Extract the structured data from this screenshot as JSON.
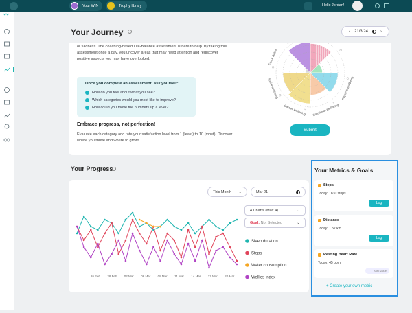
{
  "top_bar": {
    "tabs": [
      "Your WIN",
      "Trophy library"
    ],
    "greeting": "Hello Jordan!"
  },
  "journey": {
    "title": "Your Journey",
    "date": "21/3/24",
    "intro": "the factors shaping your well-being. When we get busy, we overlook the moments of joy or sadness. The coaching-based Life-Balance assessment is here to help. By taking this assessment once a day, you uncover areas that may need attention and rediscover positive aspects you may have overlooked.",
    "box_title": "Once you complete an assessment, ask yourself:",
    "questions": [
      "How do you feel about what you see?",
      "Which categories would you most like to improve?",
      "How could you move the numbers up a level?"
    ],
    "motto": "Embrace progress, not perfection!",
    "instructions": "Evaluate each category and rate your satisfaction level from 1 (least) to 10 (most). Discover where you thrive and where to grow!",
    "submit": "Submit"
  },
  "progress": {
    "title": "Your Progress",
    "period": "This Month",
    "date": "Mar 21",
    "charts": "4 Charts (Max 4)",
    "goal_label": "Goal:",
    "goal_value": "Not Selected"
  },
  "metrics": {
    "title": "Your Metrics & Goals",
    "items": [
      {
        "name": "Steps",
        "today": "Today: 1830 steps",
        "action": "Log"
      },
      {
        "name": "Distance",
        "today": "Today: 1.57 km",
        "action": "Log"
      },
      {
        "name": "Resting Heart Rate",
        "today": "Today: 45 bpm",
        "action": "Auto value"
      }
    ],
    "create": "+ Create your own metric"
  },
  "chart_data": [
    {
      "type": "polar",
      "categories": [
        null,
        null,
        "Physical wellbeing",
        "Emotional wellbeing",
        "Career wellbeing",
        "Social wellbeing",
        "Fun & Relax",
        null
      ],
      "values": [
        8.5,
        3.5,
        8,
        6.5,
        9,
        8,
        1.5,
        9
      ],
      "colors": [
        "#f2a7bb",
        "#a5e6bf",
        "#93dbec",
        "#f8caa8",
        "#f1df8f",
        "#efd98a",
        "#d9d9d9",
        "#bb92e2"
      ],
      "rlim": [
        0,
        10
      ]
    },
    {
      "type": "line",
      "x_labels": [
        "26 Feb",
        "28 Feb",
        "02 Mar",
        "06 Mar",
        "08 Mar",
        "11 Mar",
        "14 Mar",
        "17 Mar",
        "20 Mar"
      ],
      "ylim": [
        0,
        10
      ],
      "series": [
        {
          "name": "Sleep duration",
          "color": "#1fb5b0",
          "values": [
            6,
            8.5,
            7,
            6.5,
            8,
            7.5,
            6,
            8,
            9,
            7,
            7.5,
            6.5,
            7,
            8,
            7,
            6.5,
            7.5,
            6,
            7,
            8,
            7,
            6.5,
            7.5,
            8
          ]
        },
        {
          "name": "Steps",
          "color": "#e0445a",
          "values": [
            7,
            5,
            6.5,
            4,
            6,
            7.5,
            3,
            5,
            8,
            6,
            4.5,
            7,
            3.5,
            6,
            5,
            2.5,
            6.5,
            4,
            7,
            3,
            5.5,
            6,
            4,
            2
          ]
        },
        {
          "name": "Water consumption",
          "color": "#f5a623",
          "values": [
            null,
            null,
            null,
            null,
            null,
            null,
            null,
            null,
            null,
            8,
            7.5,
            7,
            7,
            null,
            null,
            null,
            null,
            null,
            null,
            null,
            null,
            null,
            null,
            null
          ]
        },
        {
          "name": "Wellics Index",
          "color": "#b043c4",
          "values": [
            7,
            4,
            2.5,
            4.5,
            1.5,
            3,
            5,
            2,
            6,
            3.5,
            1.5,
            4,
            2,
            5,
            3,
            1.5,
            4.5,
            2,
            5,
            1,
            3.5,
            4,
            2.5,
            1.5
          ]
        }
      ]
    }
  ]
}
